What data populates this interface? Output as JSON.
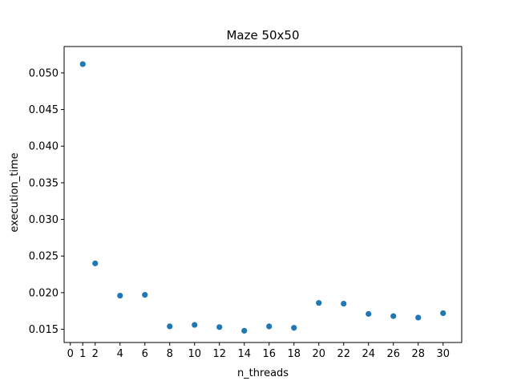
{
  "chart_data": {
    "type": "scatter",
    "title": "Maze 50x50",
    "xlabel": "n_threads",
    "ylabel": "execution_time",
    "xlim": [
      -0.5,
      31.5
    ],
    "ylim": [
      0.0132,
      0.0536
    ],
    "xticks": [
      0,
      1,
      2,
      4,
      6,
      8,
      10,
      12,
      14,
      16,
      18,
      20,
      22,
      24,
      26,
      28,
      30
    ],
    "yticks": [
      0.015,
      0.02,
      0.025,
      0.03,
      0.035,
      0.04,
      0.045,
      0.05
    ],
    "ytick_labels": [
      "0.015",
      "0.020",
      "0.025",
      "0.030",
      "0.035",
      "0.040",
      "0.045",
      "0.050"
    ],
    "grid": false,
    "marker_color": "#1f77b4",
    "points": [
      {
        "x": 1,
        "y": 0.0512
      },
      {
        "x": 2,
        "y": 0.024
      },
      {
        "x": 4,
        "y": 0.0196
      },
      {
        "x": 6,
        "y": 0.0197
      },
      {
        "x": 8,
        "y": 0.0154
      },
      {
        "x": 10,
        "y": 0.0156
      },
      {
        "x": 12,
        "y": 0.0153
      },
      {
        "x": 14,
        "y": 0.0148
      },
      {
        "x": 16,
        "y": 0.0154
      },
      {
        "x": 18,
        "y": 0.0152
      },
      {
        "x": 20,
        "y": 0.0186
      },
      {
        "x": 22,
        "y": 0.0185
      },
      {
        "x": 24,
        "y": 0.0171
      },
      {
        "x": 26,
        "y": 0.0168
      },
      {
        "x": 28,
        "y": 0.0166
      },
      {
        "x": 30,
        "y": 0.0172
      }
    ]
  }
}
